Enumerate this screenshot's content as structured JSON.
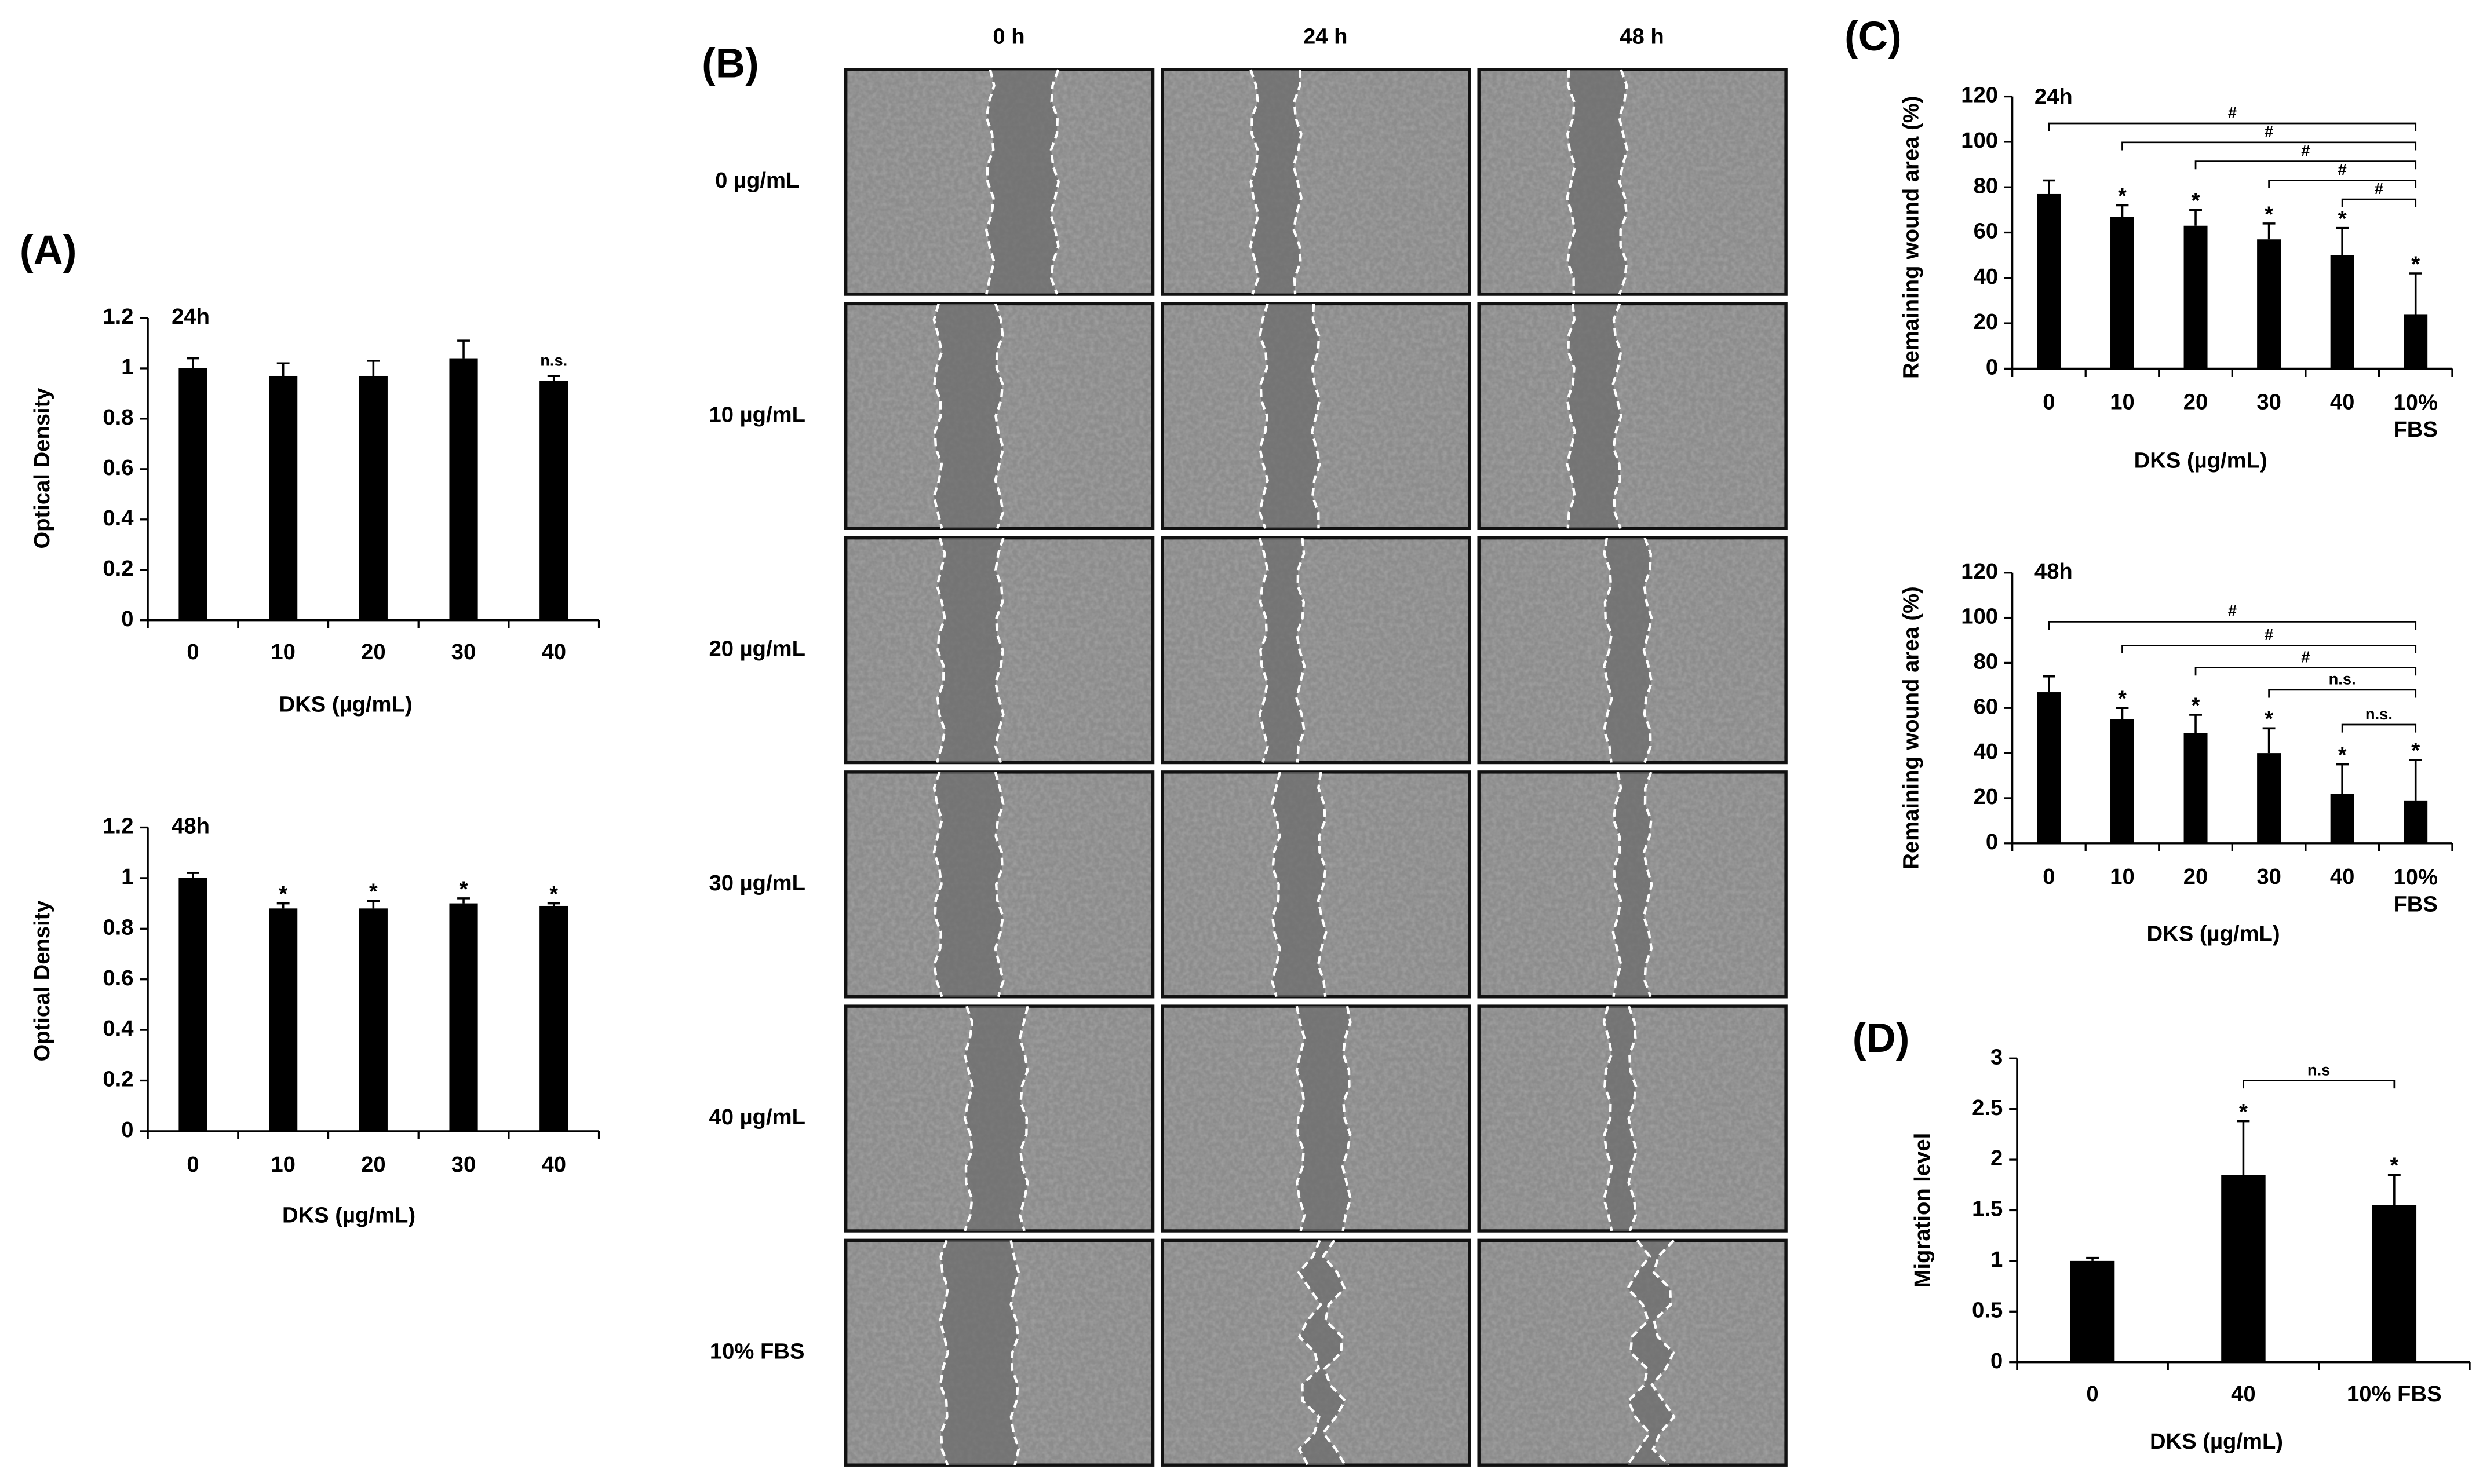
{
  "chart_data": [
    {
      "type": "bar",
      "panel": "(A)",
      "title": "24h",
      "ylabel": "Optical Density",
      "xlabel": "DKS (µg/mL)",
      "categories": [
        "0",
        "10",
        "20",
        "30",
        "40"
      ],
      "values": [
        1.0,
        0.97,
        0.97,
        1.04,
        0.95
      ],
      "errors": [
        0.04,
        0.05,
        0.06,
        0.07,
        0.02
      ],
      "markers": [
        null,
        null,
        null,
        null,
        "n.s."
      ],
      "color": "#000000",
      "ylim": [
        0,
        1.2
      ],
      "yticks": [
        0,
        0.2,
        0.4,
        0.6,
        0.8,
        1,
        1.2
      ]
    },
    {
      "type": "bar",
      "title": "48h",
      "ylabel": "Optical Density",
      "xlabel": "DKS (µg/mL)",
      "categories": [
        "0",
        "10",
        "20",
        "30",
        "40"
      ],
      "values": [
        1.0,
        0.88,
        0.88,
        0.9,
        0.89
      ],
      "errors": [
        0.02,
        0.02,
        0.03,
        0.02,
        0.01
      ],
      "markers": [
        null,
        "*",
        "*",
        "*",
        "*"
      ],
      "color": "#000000",
      "ylim": [
        0,
        1.2
      ],
      "yticks": [
        0,
        0.2,
        0.4,
        0.6,
        0.8,
        1,
        1.2
      ]
    },
    {
      "type": "bar",
      "panel": "(C)",
      "title": "24h",
      "ylabel": "Remaining wound area (%)",
      "xlabel": "DKS (µg/mL)",
      "categories": [
        "0",
        "10",
        "20",
        "30",
        "40",
        "10%\nFBS"
      ],
      "values": [
        77,
        67,
        63,
        57,
        50,
        24
      ],
      "errors": [
        6,
        5,
        7,
        7,
        12,
        18
      ],
      "markers": [
        null,
        "*",
        "*",
        "*",
        "*",
        "*"
      ],
      "color": "#000000",
      "brackets": [
        {
          "from": 0,
          "to": 5,
          "label": "#"
        },
        {
          "from": 1,
          "to": 5,
          "label": "#"
        },
        {
          "from": 2,
          "to": 5,
          "label": "#"
        },
        {
          "from": 3,
          "to": 5,
          "label": "#"
        },
        {
          "from": 4,
          "to": 5,
          "label": "#"
        }
      ],
      "ylim": [
        0,
        120
      ],
      "yticks": [
        0,
        20,
        40,
        60,
        80,
        100,
        120
      ]
    },
    {
      "type": "bar",
      "title": "48h",
      "ylabel": "Remaining wound area (%)",
      "xlabel": "DKS (µg/mL)",
      "categories": [
        "0",
        "10",
        "20",
        "30",
        "40",
        "10%\nFBS"
      ],
      "values": [
        67,
        55,
        49,
        40,
        22,
        19
      ],
      "errors": [
        7,
        5,
        8,
        11,
        13,
        18
      ],
      "markers": [
        null,
        "*",
        "*",
        "*",
        "*",
        "*"
      ],
      "color": "#000000",
      "brackets": [
        {
          "from": 0,
          "to": 5,
          "label": "#"
        },
        {
          "from": 1,
          "to": 5,
          "label": "#"
        },
        {
          "from": 2,
          "to": 5,
          "label": "#"
        },
        {
          "from": 3,
          "to": 5,
          "label": "n.s."
        },
        {
          "from": 4,
          "to": 5,
          "label": "n.s."
        }
      ],
      "ylim": [
        0,
        120
      ],
      "yticks": [
        0,
        20,
        40,
        60,
        80,
        100,
        120
      ]
    },
    {
      "type": "bar",
      "panel": "(D)",
      "ylabel": "Migration level",
      "xlabel": "DKS (µg/mL)",
      "categories": [
        "0",
        "40",
        "10% FBS"
      ],
      "values": [
        1.0,
        1.85,
        1.55
      ],
      "errors": [
        0.03,
        0.53,
        0.3
      ],
      "markers": [
        null,
        "*",
        "*"
      ],
      "color": "#000000",
      "brackets": [
        {
          "from": 1,
          "to": 2,
          "label": "n.s"
        }
      ],
      "ylim": [
        0,
        3
      ],
      "yticks": [
        0,
        0.5,
        1,
        1.5,
        2,
        2.5,
        3
      ]
    }
  ],
  "panel_b": {
    "label": "(B)",
    "columns": [
      "0 h",
      "24 h",
      "48 h"
    ],
    "rows": [
      "0 µg/mL",
      "10 µg/mL",
      "20 µg/mL",
      "30 µg/mL",
      "40 µg/mL",
      "10% FBS"
    ]
  }
}
